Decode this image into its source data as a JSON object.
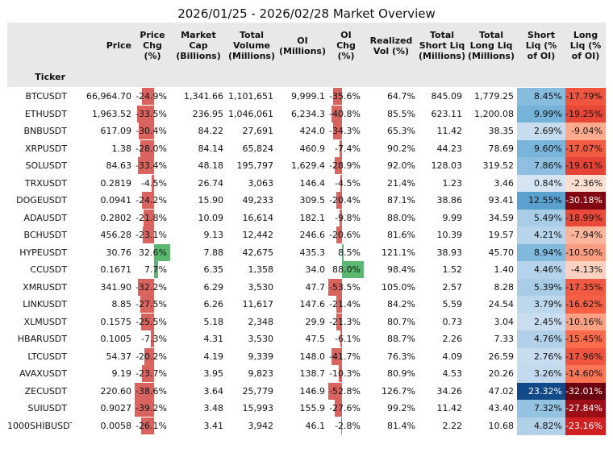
{
  "title": "2026/01/25 - 2026/02/28 Market Overview",
  "chart_data": {
    "type": "table",
    "title": "2026/01/25 - 2026/02/28 Market Overview",
    "index_label": "Ticker",
    "columns": [
      "Price",
      "Price Chg (%)",
      "Market Cap (Billions)",
      "Total Volume (Millions)",
      "OI (Millions)",
      "OI Chg (%)",
      "Realized Vol (%)",
      "Total Short Liq (Millions)",
      "Total Long Liq (Millions)",
      "Short Liq (% of OI)",
      "Long Liq (% of OI)"
    ],
    "bar_columns": [
      "Price Chg (%)",
      "OI Chg (%)"
    ],
    "heat_columns": [
      "Short Liq (% of OI)",
      "Long Liq (% of OI)"
    ],
    "colors": {
      "negative_bar": "#d9645f",
      "positive_bar": "#5cb870",
      "header_band": "#e8e8e8",
      "short_heat": "#2b74b4",
      "long_heat": "#7a0a12"
    },
    "rows": [
      [
        "BTCUSDT",
        "66,964.70",
        "-24.9%",
        "1,341.66",
        "1,101,651",
        "9,999.1",
        "-35.6%",
        "64.7%",
        "845.09",
        "1,779.25",
        "8.45%",
        "-17.79%"
      ],
      [
        "ETHUSDT",
        "1,963.52",
        "-33.5%",
        "236.95",
        "1,046,061",
        "6,234.3",
        "-40.8%",
        "85.5%",
        "623.11",
        "1,200.08",
        "9.99%",
        "-19.25%"
      ],
      [
        "BNBUSDT",
        "617.09",
        "-30.4%",
        "84.22",
        "27,691",
        "424.0",
        "-34.3%",
        "65.3%",
        "11.42",
        "38.35",
        "2.69%",
        "-9.04%"
      ],
      [
        "XRPUSDT",
        "1.38",
        "-28.0%",
        "84.14",
        "65,824",
        "460.9",
        "-7.4%",
        "90.2%",
        "44.23",
        "78.69",
        "9.60%",
        "-17.07%"
      ],
      [
        "SOLUSDT",
        "84.63",
        "-33.4%",
        "48.18",
        "195,797",
        "1,629.4",
        "-28.9%",
        "92.0%",
        "128.03",
        "319.52",
        "7.86%",
        "-19.61%"
      ],
      [
        "TRXUSDT",
        "0.2819",
        "-4.5%",
        "26.74",
        "3,063",
        "146.4",
        "-4.5%",
        "21.4%",
        "1.23",
        "3.46",
        "0.84%",
        "-2.36%"
      ],
      [
        "DOGEUSDT",
        "0.0941",
        "-24.2%",
        "15.90",
        "49,233",
        "309.5",
        "-20.4%",
        "87.1%",
        "38.86",
        "93.41",
        "12.55%",
        "-30.18%"
      ],
      [
        "ADAUSDT",
        "0.2802",
        "-21.8%",
        "10.09",
        "16,614",
        "182.1",
        "-9.8%",
        "88.0%",
        "9.99",
        "34.59",
        "5.49%",
        "-18.99%"
      ],
      [
        "BCHUSDT",
        "456.28",
        "-23.1%",
        "9.13",
        "12,442",
        "246.6",
        "-20.6%",
        "81.6%",
        "10.39",
        "19.57",
        "4.21%",
        "-7.94%"
      ],
      [
        "HYPEUSDT",
        "30.76",
        "32.6%",
        "7.88",
        "42,675",
        "435.3",
        "8.5%",
        "121.1%",
        "38.93",
        "45.70",
        "8.94%",
        "-10.50%"
      ],
      [
        "CCUSDT",
        "0.1671",
        "7.7%",
        "6.35",
        "1,358",
        "34.0",
        "88.0%",
        "98.4%",
        "1.52",
        "1.40",
        "4.46%",
        "-4.13%"
      ],
      [
        "XMRUSDT",
        "341.90",
        "-32.2%",
        "6.29",
        "3,530",
        "47.7",
        "-53.5%",
        "105.0%",
        "2.57",
        "8.28",
        "5.39%",
        "-17.35%"
      ],
      [
        "LINKUSDT",
        "8.85",
        "-27.5%",
        "6.26",
        "11,617",
        "147.6",
        "-21.4%",
        "84.2%",
        "5.59",
        "24.54",
        "3.79%",
        "-16.62%"
      ],
      [
        "XLMUSDT",
        "0.1575",
        "-25.5%",
        "5.18",
        "2,348",
        "29.9",
        "-21.3%",
        "80.7%",
        "0.73",
        "3.04",
        "2.45%",
        "-10.16%"
      ],
      [
        "HBARUSDT",
        "0.1005",
        "-7.3%",
        "4.31",
        "3,530",
        "47.5",
        "-6.1%",
        "88.7%",
        "2.26",
        "7.33",
        "4.76%",
        "-15.45%"
      ],
      [
        "LTCUSDT",
        "54.37",
        "-20.2%",
        "4.19",
        "9,339",
        "148.0",
        "-41.7%",
        "76.3%",
        "4.09",
        "26.59",
        "2.76%",
        "-17.96%"
      ],
      [
        "AVAXUSDT",
        "9.19",
        "-23.7%",
        "3.95",
        "9,823",
        "138.7",
        "-10.3%",
        "80.9%",
        "4.53",
        "20.26",
        "3.26%",
        "-14.60%"
      ],
      [
        "ZECUSDT",
        "220.60",
        "-38.6%",
        "3.64",
        "25,779",
        "146.9",
        "-52.8%",
        "126.7%",
        "34.26",
        "47.02",
        "23.32%",
        "-32.01%"
      ],
      [
        "SUIUSDT",
        "0.9027",
        "-39.2%",
        "3.48",
        "15,993",
        "155.9",
        "-27.6%",
        "99.2%",
        "11.42",
        "43.40",
        "7.32%",
        "-27.84%"
      ],
      [
        "1000SHIBUSDT",
        "0.0058",
        "-26.1%",
        "3.41",
        "3,942",
        "46.1",
        "-2.8%",
        "81.4%",
        "2.22",
        "10.68",
        "4.82%",
        "-23.16%"
      ]
    ]
  }
}
